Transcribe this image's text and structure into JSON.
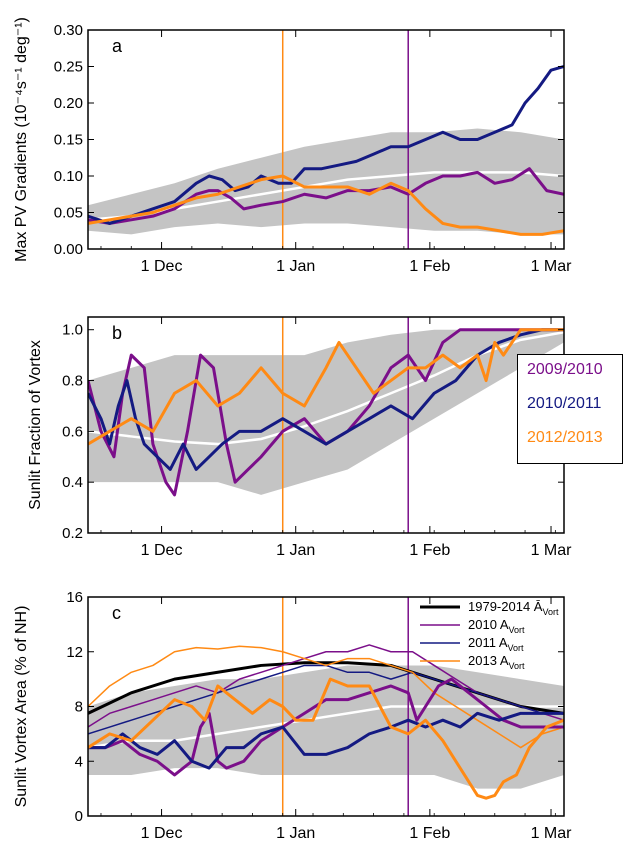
{
  "colors": {
    "purple": "#7b0f8a",
    "navy": "#141a82",
    "orange": "#ff8a14",
    "clim_band": "#c4c4c4",
    "clim_mean": "#ffffff",
    "black": "#000000"
  },
  "figure_legend": [
    {
      "label": "2009/2010",
      "color": "#7b0f8a"
    },
    {
      "label": "2010/2011",
      "color": "#141a82"
    },
    {
      "label": "2012/2013",
      "color": "#ff8a14"
    }
  ],
  "chart_data": [
    {
      "type": "line",
      "panel_label": "a",
      "ylabel": "Max PV Gradients (10⁻⁴s⁻¹ deg⁻¹)",
      "ylim": [
        0,
        0.3
      ],
      "yticks": [
        "0.00",
        "0.05",
        "0.10",
        "0.15",
        "0.20",
        "0.25",
        "0.30"
      ],
      "xlim": [
        0,
        110
      ],
      "xtick_labels": [
        "1 Dec",
        "1 Jan",
        "1 Feb",
        "1 Mar"
      ],
      "vlines": [
        {
          "x": 45,
          "color": "orange"
        },
        {
          "x": 74,
          "color": "purple"
        }
      ],
      "band": {
        "x": [
          0,
          10,
          20,
          30,
          40,
          50,
          60,
          70,
          80,
          90,
          100,
          110
        ],
        "lower": [
          0.025,
          0.02,
          0.03,
          0.035,
          0.03,
          0.035,
          0.035,
          0.03,
          0.025,
          0.025,
          0.02,
          0.02
        ],
        "upper": [
          0.06,
          0.075,
          0.09,
          0.11,
          0.125,
          0.14,
          0.15,
          0.16,
          0.16,
          0.165,
          0.16,
          0.15
        ],
        "mean": [
          0.04,
          0.045,
          0.055,
          0.065,
          0.075,
          0.085,
          0.095,
          0.1,
          0.105,
          0.105,
          0.105,
          0.1
        ]
      },
      "series": [
        {
          "name": "2009/2010",
          "color": "purple",
          "width": 3,
          "x": [
            0,
            5,
            10,
            15,
            20,
            25,
            28,
            30,
            33,
            36,
            40,
            45,
            50,
            55,
            60,
            65,
            70,
            74,
            78,
            82,
            86,
            90,
            94,
            98,
            102,
            106,
            110
          ],
          "y": [
            0.04,
            0.035,
            0.04,
            0.045,
            0.055,
            0.075,
            0.08,
            0.08,
            0.07,
            0.055,
            0.06,
            0.065,
            0.075,
            0.07,
            0.08,
            0.08,
            0.085,
            0.075,
            0.09,
            0.1,
            0.1,
            0.105,
            0.09,
            0.095,
            0.11,
            0.08,
            0.075
          ]
        },
        {
          "name": "2010/2011",
          "color": "navy",
          "width": 3,
          "x": [
            0,
            5,
            10,
            15,
            20,
            25,
            28,
            31,
            34,
            37,
            40,
            44,
            47,
            50,
            54,
            58,
            62,
            66,
            70,
            74,
            78,
            82,
            86,
            90,
            94,
            98,
            101,
            104,
            107,
            110
          ],
          "y": [
            0.045,
            0.035,
            0.045,
            0.055,
            0.065,
            0.09,
            0.1,
            0.095,
            0.08,
            0.085,
            0.1,
            0.09,
            0.09,
            0.11,
            0.11,
            0.115,
            0.12,
            0.13,
            0.14,
            0.14,
            0.15,
            0.16,
            0.15,
            0.15,
            0.16,
            0.17,
            0.2,
            0.22,
            0.245,
            0.25
          ]
        },
        {
          "name": "2012/2013",
          "color": "orange",
          "width": 3,
          "x": [
            0,
            5,
            10,
            15,
            20,
            25,
            30,
            35,
            40,
            45,
            50,
            55,
            60,
            65,
            70,
            74,
            78,
            82,
            86,
            90,
            95,
            100,
            105,
            110
          ],
          "y": [
            0.035,
            0.04,
            0.045,
            0.05,
            0.06,
            0.07,
            0.075,
            0.085,
            0.095,
            0.1,
            0.085,
            0.085,
            0.085,
            0.075,
            0.09,
            0.08,
            0.055,
            0.035,
            0.03,
            0.03,
            0.025,
            0.02,
            0.02,
            0.025
          ]
        }
      ]
    },
    {
      "type": "line",
      "panel_label": "b",
      "ylabel": "Sunlit Fraction of Vortex",
      "ylim": [
        0.2,
        1.05
      ],
      "yticks": [
        "0.2",
        "0.4",
        "0.6",
        "0.8",
        "1.0"
      ],
      "xlim": [
        0,
        110
      ],
      "xtick_labels": [
        "1 Dec",
        "1 Jan",
        "1 Feb",
        "1 Mar"
      ],
      "vlines": [
        {
          "x": 45,
          "color": "orange"
        },
        {
          "x": 74,
          "color": "purple"
        }
      ],
      "band": {
        "x": [
          0,
          10,
          20,
          30,
          40,
          50,
          60,
          70,
          80,
          90,
          100,
          110
        ],
        "lower": [
          0.4,
          0.4,
          0.4,
          0.4,
          0.35,
          0.4,
          0.45,
          0.55,
          0.65,
          0.75,
          0.85,
          0.95
        ],
        "upper": [
          0.8,
          0.85,
          0.9,
          0.9,
          0.9,
          0.9,
          0.95,
          0.98,
          1.0,
          1.0,
          1.0,
          1.0
        ],
        "mean": [
          0.6,
          0.58,
          0.56,
          0.55,
          0.57,
          0.62,
          0.68,
          0.75,
          0.82,
          0.9,
          0.96,
          0.99
        ]
      },
      "series": [
        {
          "name": "2009/2010",
          "color": "purple",
          "width": 3,
          "x": [
            0,
            3,
            6,
            8,
            10,
            13,
            15,
            18,
            20,
            23,
            26,
            29,
            32,
            34,
            37,
            40,
            45,
            50,
            55,
            60,
            65,
            70,
            74,
            78,
            82,
            86,
            90,
            95,
            100,
            105,
            110
          ],
          "y": [
            0.8,
            0.6,
            0.5,
            0.75,
            0.9,
            0.85,
            0.55,
            0.4,
            0.35,
            0.6,
            0.9,
            0.85,
            0.55,
            0.4,
            0.45,
            0.5,
            0.6,
            0.65,
            0.55,
            0.6,
            0.7,
            0.85,
            0.9,
            0.8,
            0.95,
            1.0,
            1.0,
            1.0,
            1.0,
            1.0,
            1.0
          ]
        },
        {
          "name": "2010/2011",
          "color": "navy",
          "width": 3,
          "x": [
            0,
            3,
            5,
            7,
            9,
            11,
            13,
            16,
            19,
            22,
            25,
            28,
            31,
            35,
            40,
            45,
            50,
            55,
            60,
            65,
            70,
            75,
            80,
            85,
            90,
            95,
            100,
            105,
            110
          ],
          "y": [
            0.75,
            0.65,
            0.55,
            0.7,
            0.8,
            0.65,
            0.55,
            0.5,
            0.45,
            0.55,
            0.45,
            0.5,
            0.55,
            0.6,
            0.6,
            0.65,
            0.6,
            0.55,
            0.6,
            0.65,
            0.7,
            0.65,
            0.75,
            0.8,
            0.9,
            0.95,
            0.98,
            1.0,
            1.0
          ]
        },
        {
          "name": "2012/2013",
          "color": "orange",
          "width": 3,
          "x": [
            0,
            5,
            10,
            15,
            20,
            25,
            30,
            35,
            40,
            45,
            50,
            55,
            58,
            62,
            66,
            70,
            74,
            78,
            82,
            86,
            90,
            92,
            94,
            96,
            100,
            105,
            110
          ],
          "y": [
            0.55,
            0.6,
            0.65,
            0.6,
            0.75,
            0.8,
            0.7,
            0.75,
            0.85,
            0.75,
            0.7,
            0.85,
            0.95,
            0.85,
            0.75,
            0.8,
            0.85,
            0.85,
            0.9,
            0.85,
            0.9,
            0.8,
            0.95,
            0.9,
            1.0,
            1.0,
            1.0
          ]
        }
      ]
    },
    {
      "type": "line",
      "panel_label": "c",
      "ylabel": "Sunlit Vortex Area (% of NH)",
      "ylim": [
        0,
        16
      ],
      "yticks": [
        "0",
        "4",
        "8",
        "12",
        "16"
      ],
      "xlim": [
        0,
        110
      ],
      "xtick_labels": [
        "1 Dec",
        "1 Jan",
        "1 Feb",
        "1 Mar"
      ],
      "vlines": [
        {
          "x": 45,
          "color": "orange"
        },
        {
          "x": 74,
          "color": "purple"
        }
      ],
      "legend": [
        {
          "label": "1979-2014",
          "sub": "Vort",
          "bar": true,
          "color": "black",
          "width": 3
        },
        {
          "label": "2010 A",
          "sub": "Vort",
          "bar": false,
          "color": "purple",
          "width": 1.5
        },
        {
          "label": "2011 A",
          "sub": "Vort",
          "bar": false,
          "color": "navy",
          "width": 1.5
        },
        {
          "label": "2013 A",
          "sub": "Vort",
          "bar": false,
          "color": "orange",
          "width": 1.5
        }
      ],
      "band": {
        "x": [
          0,
          10,
          20,
          30,
          40,
          50,
          60,
          70,
          80,
          90,
          100,
          110
        ],
        "lower": [
          3,
          3,
          3.5,
          3.5,
          3,
          3,
          3,
          3,
          3,
          2,
          2,
          3
        ],
        "upper": [
          8,
          9,
          9.5,
          10,
          10,
          10.5,
          11,
          11,
          11,
          10.5,
          10,
          9.5
        ],
        "mean": [
          5,
          5.5,
          5.5,
          6,
          6.5,
          7,
          7.5,
          8,
          8,
          8,
          8,
          8
        ]
      },
      "series": [
        {
          "name": "1979-2014 Ā_Vort",
          "color": "black",
          "width": 3,
          "x": [
            0,
            10,
            20,
            30,
            40,
            50,
            60,
            70,
            80,
            90,
            100,
            110
          ],
          "y": [
            7.5,
            9,
            10,
            10.5,
            11,
            11.2,
            11.2,
            11,
            10,
            9,
            8,
            7.5
          ]
        },
        {
          "name": "2010 A_Vort",
          "color": "purple",
          "width": 1.5,
          "x": [
            0,
            5,
            10,
            15,
            20,
            25,
            30,
            35,
            40,
            45,
            50,
            55,
            60,
            65,
            70,
            75,
            80,
            85,
            90,
            95,
            100,
            105,
            110
          ],
          "y": [
            6.5,
            7.5,
            8,
            8.5,
            9,
            9.5,
            9,
            10,
            10.5,
            11,
            11.5,
            12,
            12,
            12.5,
            12,
            12,
            11,
            10,
            9,
            8.5,
            8,
            7.5,
            7
          ]
        },
        {
          "name": "2011 A_Vort",
          "color": "navy",
          "width": 1.5,
          "x": [
            0,
            5,
            10,
            15,
            20,
            25,
            30,
            35,
            40,
            45,
            50,
            55,
            60,
            65,
            70,
            75,
            80,
            85,
            90,
            95,
            100,
            105,
            110
          ],
          "y": [
            6,
            6.5,
            7,
            7.5,
            8,
            8.5,
            9,
            9.5,
            10,
            10.5,
            11,
            11,
            10.5,
            10.5,
            10,
            10.5,
            10,
            9.5,
            9,
            8.5,
            8,
            7.5,
            7.5
          ]
        },
        {
          "name": "2013 A_Vort",
          "color": "orange",
          "width": 1.5,
          "x": [
            0,
            5,
            10,
            15,
            20,
            25,
            30,
            35,
            40,
            45,
            50,
            55,
            60,
            65,
            70,
            75,
            80,
            85,
            90,
            95,
            100,
            105,
            110
          ],
          "y": [
            8,
            9.5,
            10.5,
            11,
            12,
            12.3,
            12.2,
            12.4,
            12.3,
            12,
            11.5,
            11,
            11.5,
            11.5,
            11,
            10.5,
            9,
            8,
            7,
            6,
            5,
            6,
            6.5
          ]
        },
        {
          "name": "2009/2010",
          "color": "purple",
          "width": 3,
          "x": [
            0,
            4,
            8,
            12,
            16,
            20,
            24,
            26,
            28,
            30,
            32,
            36,
            40,
            45,
            50,
            55,
            60,
            65,
            70,
            74,
            76,
            78,
            81,
            84,
            88,
            92,
            96,
            100,
            105,
            110
          ],
          "y": [
            5,
            5,
            5.5,
            4.5,
            4,
            3,
            4,
            6.5,
            7.5,
            4,
            3.5,
            4,
            5.5,
            6.5,
            7.5,
            8.5,
            8.5,
            9,
            9.5,
            9,
            7,
            8,
            9.5,
            10,
            9,
            8,
            7,
            6.5,
            6.5,
            6.5
          ]
        },
        {
          "name": "2010/2011",
          "color": "navy",
          "width": 3,
          "x": [
            0,
            4,
            8,
            12,
            16,
            20,
            24,
            28,
            32,
            36,
            40,
            45,
            50,
            55,
            60,
            65,
            70,
            74,
            78,
            82,
            86,
            90,
            95,
            100,
            105,
            110
          ],
          "y": [
            5,
            5,
            6,
            5,
            4.5,
            5.5,
            4,
            3.5,
            5,
            5,
            6,
            6.5,
            4.5,
            4.5,
            5,
            6,
            6.5,
            7,
            6.5,
            7,
            6.5,
            7.5,
            7,
            7.5,
            7.5,
            7.5
          ]
        },
        {
          "name": "2012/2013",
          "color": "orange",
          "width": 3,
          "x": [
            0,
            5,
            10,
            15,
            20,
            24,
            27,
            30,
            34,
            38,
            42,
            45,
            48,
            52,
            56,
            60,
            65,
            70,
            74,
            78,
            82,
            86,
            90,
            92,
            94,
            96,
            99,
            102,
            106,
            110
          ],
          "y": [
            5,
            6,
            5.5,
            7,
            8.5,
            8,
            7,
            9.5,
            8.5,
            7.5,
            8.5,
            8,
            7,
            7,
            10,
            9.5,
            9.5,
            6.5,
            6,
            7,
            5.5,
            3.5,
            1.5,
            1.3,
            1.5,
            2.5,
            3,
            5,
            6.5,
            7
          ]
        }
      ]
    }
  ]
}
